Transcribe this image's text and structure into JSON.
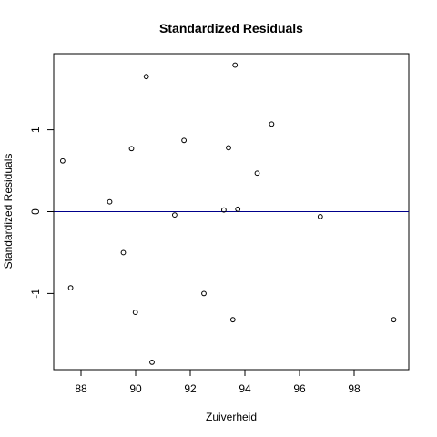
{
  "chart_data": {
    "type": "scatter",
    "title": "Standardized Residuals",
    "xlabel": "Zuiverheid",
    "ylabel": "Standardized Residuals",
    "xlim": [
      87.0,
      100.0
    ],
    "ylim": [
      -1.93,
      1.93
    ],
    "xticks": [
      88,
      90,
      92,
      94,
      96,
      98
    ],
    "yticks": [
      -1,
      0,
      1
    ],
    "xtick_labels": [
      "88",
      "90",
      "92",
      "94",
      "96",
      "98"
    ],
    "ytick_labels": [
      "-1",
      "0",
      "1"
    ],
    "reference_line": {
      "y": 0,
      "color": "#00008b"
    },
    "grid": false,
    "points": [
      {
        "x": 87.33,
        "y": 0.62
      },
      {
        "x": 87.62,
        "y": -0.93
      },
      {
        "x": 89.05,
        "y": 0.12
      },
      {
        "x": 89.55,
        "y": -0.5
      },
      {
        "x": 89.85,
        "y": 0.77
      },
      {
        "x": 89.99,
        "y": -1.23
      },
      {
        "x": 90.39,
        "y": 1.65
      },
      {
        "x": 90.6,
        "y": -1.84
      },
      {
        "x": 91.43,
        "y": -0.04
      },
      {
        "x": 91.77,
        "y": 0.87
      },
      {
        "x": 92.5,
        "y": -1.0
      },
      {
        "x": 93.23,
        "y": 0.02
      },
      {
        "x": 93.4,
        "y": 0.78
      },
      {
        "x": 93.56,
        "y": -1.32
      },
      {
        "x": 93.64,
        "y": 1.79
      },
      {
        "x": 93.74,
        "y": 0.03
      },
      {
        "x": 94.45,
        "y": 0.47
      },
      {
        "x": 94.98,
        "y": 1.07
      },
      {
        "x": 96.76,
        "y": -0.06
      },
      {
        "x": 99.45,
        "y": -1.32
      }
    ]
  }
}
